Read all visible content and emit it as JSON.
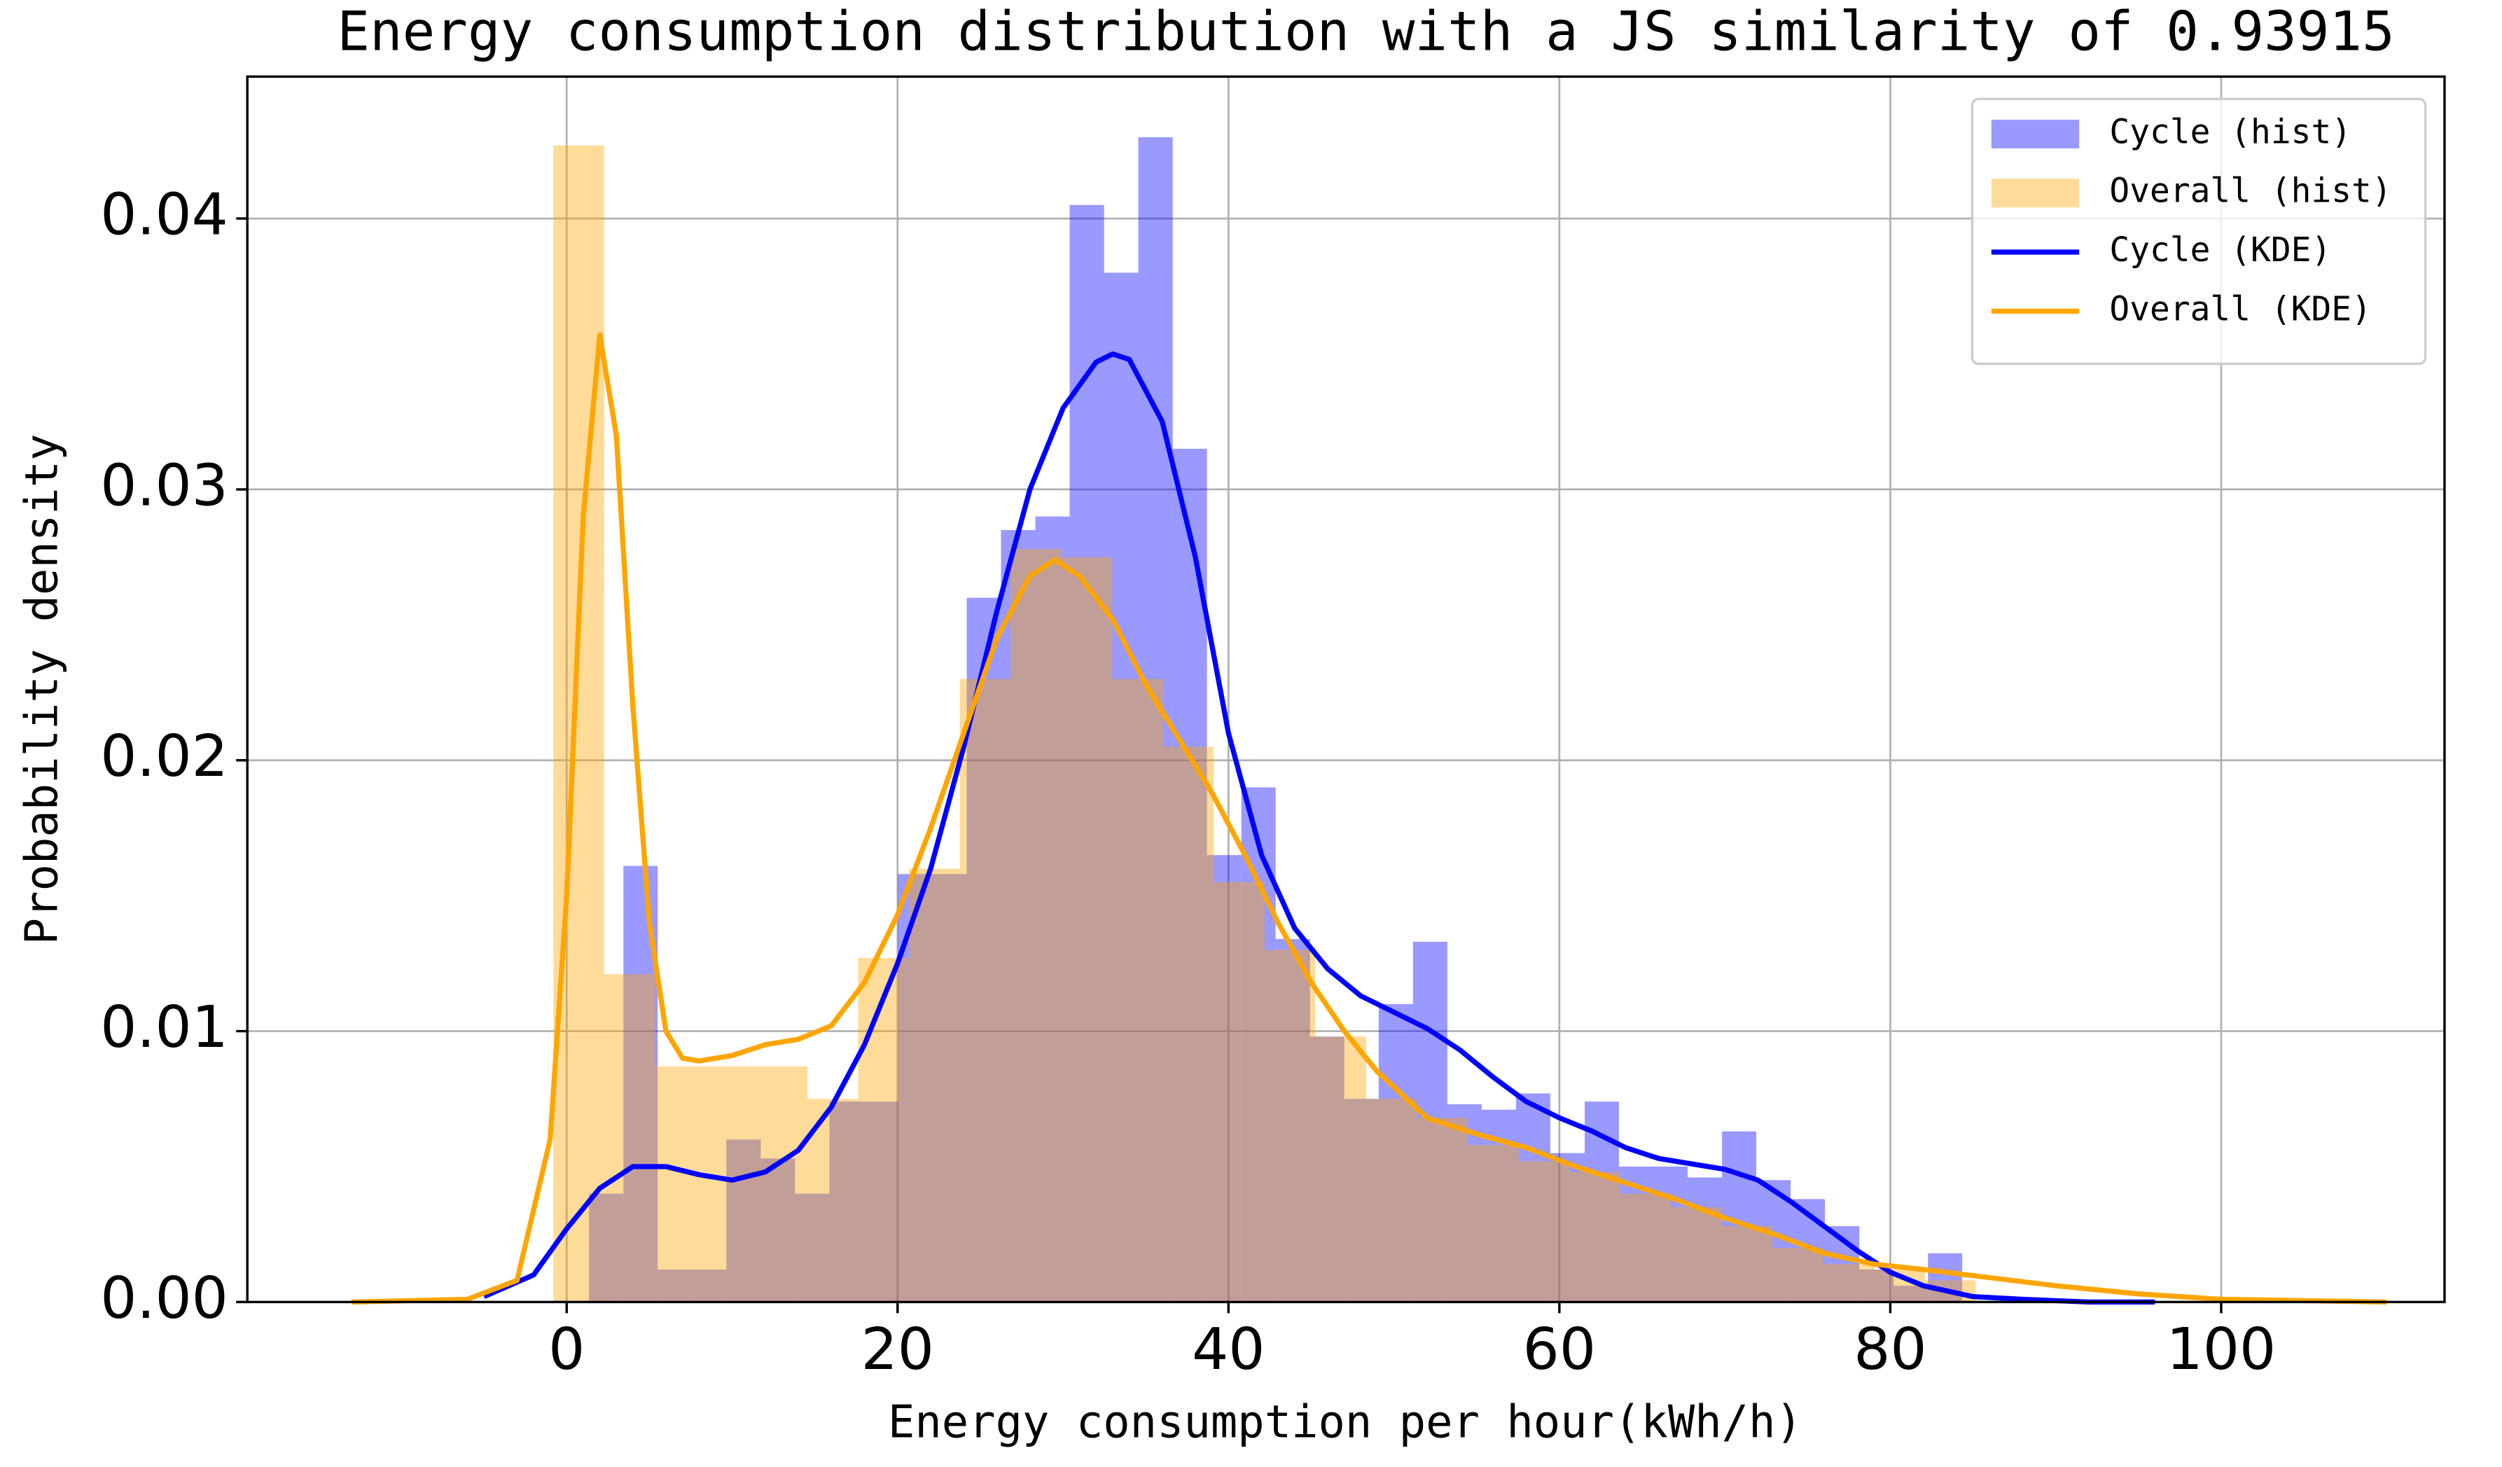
{
  "chart_data": {
    "type": "histogram",
    "title": "Energy consumption distribution with a JS similarity of 0.93915",
    "xlabel": "Energy consumption per hour(kWh/h)",
    "ylabel": "Probability density",
    "xlim": [
      -19.3,
      113.5
    ],
    "ylim": [
      0,
      0.04524
    ],
    "xticks": [
      0,
      20,
      40,
      60,
      80,
      100
    ],
    "yticks": [
      {
        "value": 0,
        "label": "0.00"
      },
      0.01,
      0.02,
      0.03,
      0.04
    ],
    "grid": true,
    "legend": "upper right",
    "series": [
      {
        "name": "Cycle (hist)",
        "type": "hist",
        "color": "#0000ff",
        "bins": [
          1.35,
          3.43,
          5.5,
          7.58,
          9.65,
          11.73,
          13.8,
          15.88,
          17.95,
          20.03,
          22.1,
          24.18,
          26.25,
          28.33,
          30.4,
          32.48,
          34.55,
          36.63,
          38.7,
          40.78,
          42.85,
          44.93,
          47.0,
          49.08,
          51.15,
          53.23,
          55.3,
          57.38,
          59.45,
          61.53,
          63.6,
          65.68,
          67.75,
          69.83,
          71.9,
          73.98,
          76.05,
          78.13,
          80.2,
          82.28,
          84.35
        ],
        "values": [
          0.004,
          0.0161,
          0.0012,
          0.0012,
          0.006,
          0.0053,
          0.004,
          0.0074,
          0.0074,
          0.0158,
          0.0158,
          0.026,
          0.0285,
          0.029,
          0.0405,
          0.038,
          0.043,
          0.0315,
          0.0165,
          0.019,
          0.0134,
          0.0098,
          0.0075,
          0.011,
          0.0133,
          0.0073,
          0.0071,
          0.0077,
          0.0055,
          0.0074,
          0.005,
          0.005,
          0.0046,
          0.0063,
          0.0045,
          0.0038,
          0.0028,
          0.0012,
          0.0006,
          0.0018
        ]
      },
      {
        "name": "Overall (hist)",
        "type": "hist",
        "color": "#ffa500",
        "bins": [
          -0.8,
          2.27,
          5.34,
          8.41,
          11.48,
          14.55,
          17.62,
          20.69,
          23.76,
          26.83,
          29.9,
          32.97,
          36.04,
          39.11,
          42.18,
          45.25,
          48.32,
          51.39,
          54.46,
          57.53,
          60.6,
          63.67,
          66.74,
          69.81,
          72.88,
          75.95,
          79.02,
          82.09,
          85.16
        ],
        "values": [
          0.0427,
          0.0121,
          0.0087,
          0.0087,
          0.0087,
          0.0075,
          0.0127,
          0.016,
          0.023,
          0.0278,
          0.0275,
          0.023,
          0.0205,
          0.0155,
          0.013,
          0.0098,
          0.0075,
          0.0068,
          0.0058,
          0.0052,
          0.0048,
          0.004,
          0.0035,
          0.0028,
          0.002,
          0.0014,
          0.0012,
          0.0008
        ]
      },
      {
        "name": "Cycle (KDE)",
        "type": "line",
        "color": "#0000ff",
        "x": [
          -5,
          -2,
          0,
          2,
          4,
          6,
          8,
          10,
          12,
          14,
          16,
          18,
          20,
          22,
          24,
          26,
          28,
          30,
          32,
          33,
          34,
          36,
          38,
          40,
          42,
          44,
          46,
          48,
          50,
          52,
          54,
          56,
          58,
          60,
          62,
          64,
          66,
          68,
          70,
          72,
          74,
          76,
          78,
          80,
          82,
          85,
          88,
          92,
          96
        ],
        "values": [
          0.0002,
          0.001,
          0.0027,
          0.0042,
          0.005,
          0.005,
          0.0047,
          0.0045,
          0.0048,
          0.0056,
          0.0072,
          0.0095,
          0.0125,
          0.016,
          0.0205,
          0.0255,
          0.03,
          0.033,
          0.0347,
          0.035,
          0.0348,
          0.0325,
          0.0275,
          0.021,
          0.0165,
          0.0138,
          0.0123,
          0.0113,
          0.0107,
          0.0101,
          0.0093,
          0.0083,
          0.0074,
          0.0068,
          0.0063,
          0.0057,
          0.0053,
          0.0051,
          0.0049,
          0.0045,
          0.0037,
          0.0028,
          0.0019,
          0.0011,
          0.0006,
          0.0002,
          0.0001,
          0,
          0
        ]
      },
      {
        "name": "Overall (KDE)",
        "type": "line",
        "color": "#ffa500",
        "x": [
          -13,
          -6,
          -3,
          -1,
          0,
          1,
          2,
          3,
          4,
          5,
          6,
          7,
          8,
          10,
          12,
          14,
          16,
          18,
          20,
          22,
          24,
          26,
          28,
          29.5,
          31,
          33,
          35,
          37,
          39,
          41,
          43,
          45,
          47,
          49,
          52,
          55,
          58,
          61,
          64,
          67,
          70,
          73,
          76,
          79,
          82,
          86,
          90,
          95,
          100,
          110
        ],
        "values": [
          0,
          0.0001,
          0.0008,
          0.006,
          0.015,
          0.029,
          0.0357,
          0.032,
          0.022,
          0.014,
          0.01,
          0.009,
          0.0089,
          0.0091,
          0.0095,
          0.0097,
          0.0102,
          0.0118,
          0.0143,
          0.0175,
          0.021,
          0.0245,
          0.0268,
          0.0274,
          0.0268,
          0.0252,
          0.0228,
          0.0208,
          0.0188,
          0.0165,
          0.014,
          0.0118,
          0.01,
          0.0085,
          0.0068,
          0.0062,
          0.0057,
          0.005,
          0.0044,
          0.0038,
          0.0031,
          0.0025,
          0.0018,
          0.0014,
          0.0012,
          0.0009,
          0.0006,
          0.0003,
          0.0001,
          0
        ]
      }
    ]
  }
}
